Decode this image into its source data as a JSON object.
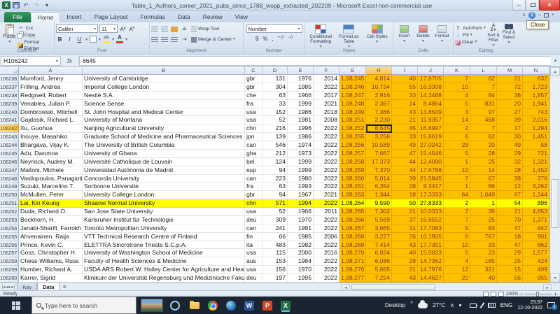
{
  "window": {
    "title": "Table_1_Authors_career_2021_pubs_since_1788_wopp_extracted_202209 - Microsoft Excel non-commercial use",
    "close_tooltip": "Close"
  },
  "ribbon": {
    "tabs": [
      "File",
      "Home",
      "Insert",
      "Page Layout",
      "Formulas",
      "Data",
      "Review",
      "View"
    ],
    "active_tab": "Home",
    "clipboard": {
      "label": "Clipboard",
      "paste": "Paste",
      "cut": "Cut",
      "copy": "Copy",
      "format_painter": "Format Painter"
    },
    "font": {
      "label": "Font",
      "family": "Calibri",
      "size": "11",
      "bold": "B",
      "italic": "I",
      "underline": "U"
    },
    "alignment": {
      "label": "Alignment",
      "wrap_text": "Wrap Text",
      "merge_center": "Merge & Center"
    },
    "number": {
      "label": "Number",
      "format": "Number"
    },
    "styles": {
      "label": "Styles",
      "conditional": "Conditional Formatting",
      "format_table": "Format as Table",
      "cell_styles": "Cell Styles"
    },
    "cells": {
      "label": "Cells",
      "insert": "Insert",
      "delete": "Delete",
      "format": "Format"
    },
    "editing": {
      "label": "Editing",
      "autosum": "AutoSum",
      "fill": "Fill",
      "clear": "Clear",
      "sort_filter": "Sort & Filter",
      "find_select": "Find & Select"
    }
  },
  "formula_bar": {
    "name_box": "H106242",
    "fx_label": "fx",
    "value": "8645"
  },
  "grid": {
    "column_headers": [
      "A",
      "B",
      "C",
      "D",
      "E",
      "F",
      "G",
      "H",
      "I",
      "J",
      "K",
      "L",
      "M",
      "N"
    ],
    "active_column": "H",
    "active_row": "106242",
    "highlighted_row": "106251",
    "rows": [
      [
        "106236",
        "Mumford, Jenny",
        "University of Cambridge",
        "gbr",
        "131",
        "1976",
        "2014",
        "1,08,245",
        "4,814",
        "40",
        "17.8705",
        "7",
        "62",
        "21",
        "632"
      ],
      [
        "106237",
        "Frilling, Andrea",
        "Imperial College London",
        "gbr",
        "304",
        "1985",
        "2022",
        "1,08,246",
        "10,734",
        "55",
        "16.3308",
        "10",
        "7",
        "72",
        "1,723"
      ],
      [
        "106238",
        "Redgwell, Robert",
        "Nestlé S.A.",
        "che",
        "63",
        "1966",
        "2017",
        "1,08,247",
        "2,916",
        "33",
        "14.3488",
        "4",
        "84",
        "38",
        "1,857"
      ],
      [
        "106239",
        "Venables, Julian P.",
        "Science Sense",
        "fra",
        "33",
        "1999",
        "2021",
        "1,08,248",
        "2,367",
        "24",
        "8.4864",
        "5",
        "831",
        "20",
        "1,941"
      ],
      [
        "106240",
        "Dombrowski, Mitchell",
        "St. John Hospital and Medical Center",
        "usa",
        "152",
        "1986",
        "2018",
        "1,08,249",
        "7,366",
        "43",
        "13.8509",
        "3",
        "97",
        "27",
        "743"
      ],
      [
        "106241",
        "Gajdosik, Richard L.",
        "University of Montana",
        "usa",
        "52",
        "1981",
        "2008",
        "1,08,251",
        "2,230",
        "21",
        "11.9357",
        "14",
        "468",
        "39",
        "2,016"
      ],
      [
        "106242",
        "Xu, Guohua",
        "Nanjing Agricultural University",
        "chn",
        "216",
        "1996",
        "2022",
        "1,08,252",
        "8,645",
        "45",
        "16.8997",
        "2",
        "7",
        "17",
        "1,294"
      ],
      [
        "106243",
        "Inouye, Masahiko",
        "Graduate School of Medicine and Pharmaceutical Sciences",
        "jpn",
        "139",
        "1986",
        "2022",
        "1,08,255",
        "3,258",
        "33",
        "15.8619",
        "6",
        "62",
        "30",
        "1,451"
      ],
      [
        "106244",
        "Bhargava, Vijay K.",
        "The University of British Columbia",
        "can",
        "546",
        "1974",
        "2022",
        "1,08,256",
        "10,589",
        "49",
        "27.0242",
        "28",
        "20",
        "49",
        "58"
      ],
      [
        "106245",
        "Adu, Dwomoa",
        "University of Ghana",
        "gha",
        "212",
        "1973",
        "2022",
        "1,08,257",
        "7,667",
        "47",
        "15.4546",
        "5",
        "28",
        "29",
        "721"
      ],
      [
        "106246",
        "Neyrinck, Audrey M.",
        "Université Catholique de Louvain",
        "bel",
        "124",
        "1999",
        "2022",
        "1,08,258",
        "17,373",
        "44",
        "12.4090",
        "1",
        "25",
        "32",
        "1,321"
      ],
      [
        "106247",
        "Maltoni, Michele",
        "Universidad Autónoma de Madrid",
        "esp",
        "94",
        "1999",
        "2022",
        "1,08,259",
        "7,370",
        "44",
        "17.6788",
        "10",
        "14",
        "28",
        "1,452"
      ],
      [
        "106248",
        "Vasilopoulos, Panagiotis",
        "Concordia University",
        "can",
        "223",
        "1980",
        "2022",
        "1,08,260",
        "5,014",
        "39",
        "21.5845",
        "7",
        "67",
        "38",
        "376"
      ],
      [
        "106249",
        "Suzuki, Marcelino T.",
        "Sorbonne Universite",
        "fra",
        "63",
        "1993",
        "2022",
        "1,08,261",
        "6,354",
        "28",
        "9.3417",
        "1",
        "66",
        "12",
        "3,262"
      ],
      [
        "106250",
        "McMullen, Peter",
        "University College London",
        "gbr",
        "94",
        "1967",
        "2021",
        "1,08,263",
        "1,344",
        "18",
        "17.3333",
        "64",
        "1,049",
        "87",
        "1,244"
      ],
      [
        "106251",
        "Lai, Kin Keung",
        "Shaanxi Normal University",
        "chn",
        "571",
        "1994",
        "2022",
        "1,08,264",
        "9,590",
        "50",
        "27.8333",
        "2",
        "1",
        "54",
        "896"
      ],
      [
        "106252",
        "Duda, Richard O.",
        "San Jose State University",
        "usa",
        "52",
        "1966",
        "2011",
        "1,08,265",
        "7,302",
        "21",
        "10.0333",
        "7",
        "35",
        "21",
        "4,853"
      ],
      [
        "106253",
        "Bockhorn, H.",
        "Karlsruher Institut für Technologie",
        "deu",
        "309",
        "1970",
        "2022",
        "1,08,266",
        "5,569",
        "37",
        "16.8552",
        "7",
        "25",
        "70",
        "1,371"
      ],
      [
        "106254",
        "Janabi-Sharifi, Farrokh",
        "Toronto Metropolitan University",
        "can",
        "241",
        "1991",
        "2022",
        "1,08,267",
        "3,665",
        "31",
        "17.7083",
        "5",
        "83",
        "47",
        "942"
      ],
      [
        "106255",
        "Ahvenainen, Raija",
        "VTT Technical Research Centre of Finland",
        "fin",
        "66",
        "1985",
        "2006",
        "1,08,268",
        "3,227",
        "26",
        "10.1905",
        "6",
        "767",
        "18",
        "901"
      ],
      [
        "106256",
        "Prince, Kevin C.",
        "ELETTRA Sincrotrone Trieste S.C.p.A.",
        "ita",
        "483",
        "1982",
        "2022",
        "1,08,269",
        "7,414",
        "43",
        "17.7301",
        "10",
        "33",
        "47",
        "862"
      ],
      [
        "106257",
        "Goss, Christopher H.",
        "University of Washington School of Medicine",
        "usa",
        "115",
        "2000",
        "2016",
        "1,08,270",
        "6,824",
        "40",
        "15.0823",
        "5",
        "23",
        "29",
        "1,577"
      ],
      [
        "106258",
        "Chess-Williams, Russ",
        "Faculty of Health Sciences & Medicine",
        "aus",
        "153",
        "1984",
        "2022",
        "1,08,271",
        "6,086",
        "28",
        "14.7362",
        "4",
        "185",
        "25",
        "424"
      ],
      [
        "106259",
        "Humber, Richard A.",
        "USDA ARS Robert W. Holley Center for Agriculture and Health",
        "usa",
        "156",
        "1970",
        "2022",
        "1,08,276",
        "5,665",
        "31",
        "14.7976",
        "12",
        "321",
        "15",
        "409"
      ],
      [
        "106260",
        "Karrer, Sigrid",
        "Klinikum der Universität Regensburg und Medizinische Fakultät",
        "deu",
        "197",
        "1995",
        "2022",
        "1,08,277",
        "7,254",
        "43",
        "14.4627",
        "20",
        "40",
        "56",
        "955"
      ]
    ]
  },
  "sheet_tabs": {
    "items": [
      "Key",
      "Data"
    ],
    "active": "Data"
  },
  "status_bar": {
    "mode": "Ready",
    "zoom": "100%"
  },
  "taskbar": {
    "search_placeholder": "Type here to search",
    "desktop_label": "Desktop",
    "overflow_chevron": "»",
    "temperature": "27°C",
    "language": "ENG",
    "time": "23:37",
    "date": "12-10-2022",
    "notification_count": "1"
  },
  "icons": {
    "dropdown": "▾",
    "scissors": "✂",
    "undo": "↶",
    "redo": "↷",
    "sigma": "Σ",
    "close": "×",
    "minimize": "–",
    "help": "?",
    "chevron_up": "∧",
    "accounting": "$",
    "percent": "%",
    "comma": ",",
    "inc_decimal": "+.0",
    "dec_decimal": "-.0",
    "fill_down": "↓",
    "up": "▴",
    "down": "▾",
    "left": "◂",
    "right": "▸",
    "first": "|◂",
    "last": "▸|",
    "az": "AZ",
    "excel_logo": "X",
    "word_logo": "W",
    "ppt_logo": "P"
  },
  "colors": {
    "highlight_orange": "#FFC000",
    "highlight_yellow": "#FFFF00",
    "excel_green": "#1E7145",
    "close_red": "#D93A30"
  }
}
